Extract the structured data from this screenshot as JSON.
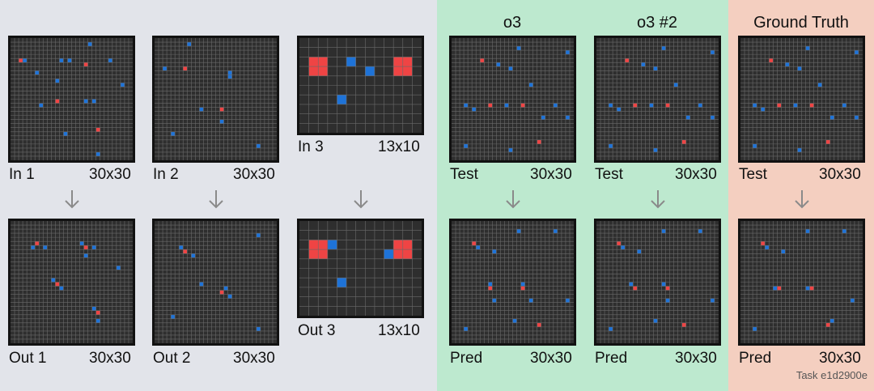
{
  "colors": {
    "bg": "#2e2e2e",
    "gridline": "#6a6a6a",
    "border": "#111111",
    "red": "#ef4444",
    "blue": "#1e73d8",
    "examples_bg": "#e2e4ea",
    "model_bg": "#bde9cf",
    "truth_bg": "#f4cfc0",
    "arrow": "#8a8a8a"
  },
  "headers": {
    "o3": "o3",
    "o3_2": "o3 #2",
    "truth": "Ground Truth"
  },
  "task_label": "Task e1d2900e",
  "arrow_icon": "down-arrow-icon",
  "pairs": {
    "ex1": {
      "in_label": "In 1",
      "out_label": "Out 1",
      "size": "30x30"
    },
    "ex2": {
      "in_label": "In 2",
      "out_label": "Out 2",
      "size": "30x30"
    },
    "ex3": {
      "in_label": "In 3",
      "out_label": "Out 3",
      "size": "13x10"
    },
    "o3": {
      "in_label": "Test",
      "out_label": "Pred",
      "size": "30x30"
    },
    "o3b": {
      "in_label": "Test",
      "out_label": "Pred",
      "size": "30x30"
    },
    "gt": {
      "in_label": "Test",
      "out_label": "Pred",
      "size": "30x30"
    }
  },
  "grids": {
    "in1": {
      "cols": 30,
      "rows": 30,
      "red": [
        [
          2,
          5
        ],
        [
          18,
          6
        ],
        [
          11,
          15
        ],
        [
          21,
          22
        ]
      ],
      "blue": [
        [
          19,
          1
        ],
        [
          3,
          5
        ],
        [
          12,
          5
        ],
        [
          14,
          5
        ],
        [
          24,
          5
        ],
        [
          6,
          8
        ],
        [
          11,
          10
        ],
        [
          27,
          11
        ],
        [
          18,
          15
        ],
        [
          20,
          15
        ],
        [
          7,
          16
        ],
        [
          13,
          23
        ],
        [
          21,
          28
        ]
      ]
    },
    "out1": {
      "cols": 30,
      "rows": 30,
      "red": [
        [
          6,
          5
        ],
        [
          18,
          6
        ],
        [
          11,
          15
        ],
        [
          21,
          22
        ]
      ],
      "blue": [
        [
          5,
          6
        ],
        [
          8,
          6
        ],
        [
          17,
          5
        ],
        [
          20,
          6
        ],
        [
          18,
          8
        ],
        [
          10,
          14
        ],
        [
          12,
          16
        ],
        [
          20,
          21
        ],
        [
          21,
          24
        ],
        [
          26,
          11
        ]
      ]
    },
    "in2": {
      "cols": 30,
      "rows": 30,
      "red": [
        [
          7,
          7
        ],
        [
          16,
          17
        ]
      ],
      "blue": [
        [
          8,
          1
        ],
        [
          2,
          7
        ],
        [
          18,
          8
        ],
        [
          18,
          8
        ],
        [
          18,
          9
        ],
        [
          11,
          17
        ],
        [
          16,
          20
        ],
        [
          4,
          23
        ],
        [
          25,
          26
        ]
      ]
    },
    "out2": {
      "cols": 30,
      "rows": 30,
      "red": [
        [
          7,
          7
        ],
        [
          16,
          17
        ]
      ],
      "blue": [
        [
          6,
          6
        ],
        [
          9,
          8
        ],
        [
          17,
          16
        ],
        [
          11,
          15
        ],
        [
          18,
          18
        ],
        [
          25,
          3
        ],
        [
          4,
          23
        ],
        [
          25,
          26
        ]
      ]
    },
    "in3": {
      "cols": 13,
      "rows": 10,
      "red": [
        [
          1,
          2
        ],
        [
          10,
          2
        ]
      ],
      "blue": [
        [
          5,
          2
        ],
        [
          7,
          3
        ],
        [
          4,
          6
        ]
      ]
    },
    "out3": {
      "cols": 13,
      "rows": 10,
      "red": [
        [
          1,
          2
        ],
        [
          10,
          2
        ]
      ],
      "blue": [
        [
          3,
          2
        ],
        [
          9,
          3
        ],
        [
          4,
          6
        ]
      ]
    },
    "test": {
      "cols": 30,
      "rows": 30,
      "red": [
        [
          7,
          5
        ],
        [
          9,
          16
        ],
        [
          17,
          16
        ],
        [
          21,
          25
        ]
      ],
      "blue": [
        [
          16,
          2
        ],
        [
          28,
          3
        ],
        [
          11,
          6
        ],
        [
          14,
          7
        ],
        [
          19,
          11
        ],
        [
          3,
          16
        ],
        [
          5,
          17
        ],
        [
          13,
          16
        ],
        [
          25,
          16
        ],
        [
          22,
          19
        ],
        [
          28,
          19
        ],
        [
          14,
          27
        ],
        [
          3,
          26
        ]
      ]
    },
    "pred": {
      "cols": 30,
      "rows": 30,
      "red": [
        [
          5,
          5
        ],
        [
          9,
          16
        ],
        [
          17,
          16
        ],
        [
          21,
          25
        ]
      ],
      "blue": [
        [
          16,
          2
        ],
        [
          25,
          2
        ],
        [
          6,
          6
        ],
        [
          10,
          7
        ],
        [
          9,
          15
        ],
        [
          17,
          15
        ],
        [
          19,
          19
        ],
        [
          10,
          19
        ],
        [
          3,
          26
        ],
        [
          15,
          24
        ],
        [
          28,
          19
        ]
      ]
    },
    "pred2": {
      "cols": 30,
      "rows": 30,
      "red": [
        [
          5,
          5
        ],
        [
          9,
          16
        ],
        [
          17,
          16
        ],
        [
          21,
          25
        ]
      ],
      "blue": [
        [
          16,
          2
        ],
        [
          25,
          2
        ],
        [
          6,
          6
        ],
        [
          10,
          7
        ],
        [
          8,
          15
        ],
        [
          16,
          15
        ],
        [
          28,
          19
        ],
        [
          3,
          26
        ],
        [
          14,
          24
        ],
        [
          17,
          19
        ]
      ]
    },
    "gt_pred": {
      "cols": 30,
      "rows": 30,
      "red": [
        [
          5,
          5
        ],
        [
          9,
          16
        ],
        [
          17,
          16
        ],
        [
          21,
          25
        ]
      ],
      "blue": [
        [
          16,
          2
        ],
        [
          25,
          2
        ],
        [
          6,
          6
        ],
        [
          10,
          7
        ],
        [
          8,
          16
        ],
        [
          16,
          16
        ],
        [
          27,
          19
        ],
        [
          3,
          26
        ],
        [
          22,
          24
        ]
      ]
    }
  }
}
